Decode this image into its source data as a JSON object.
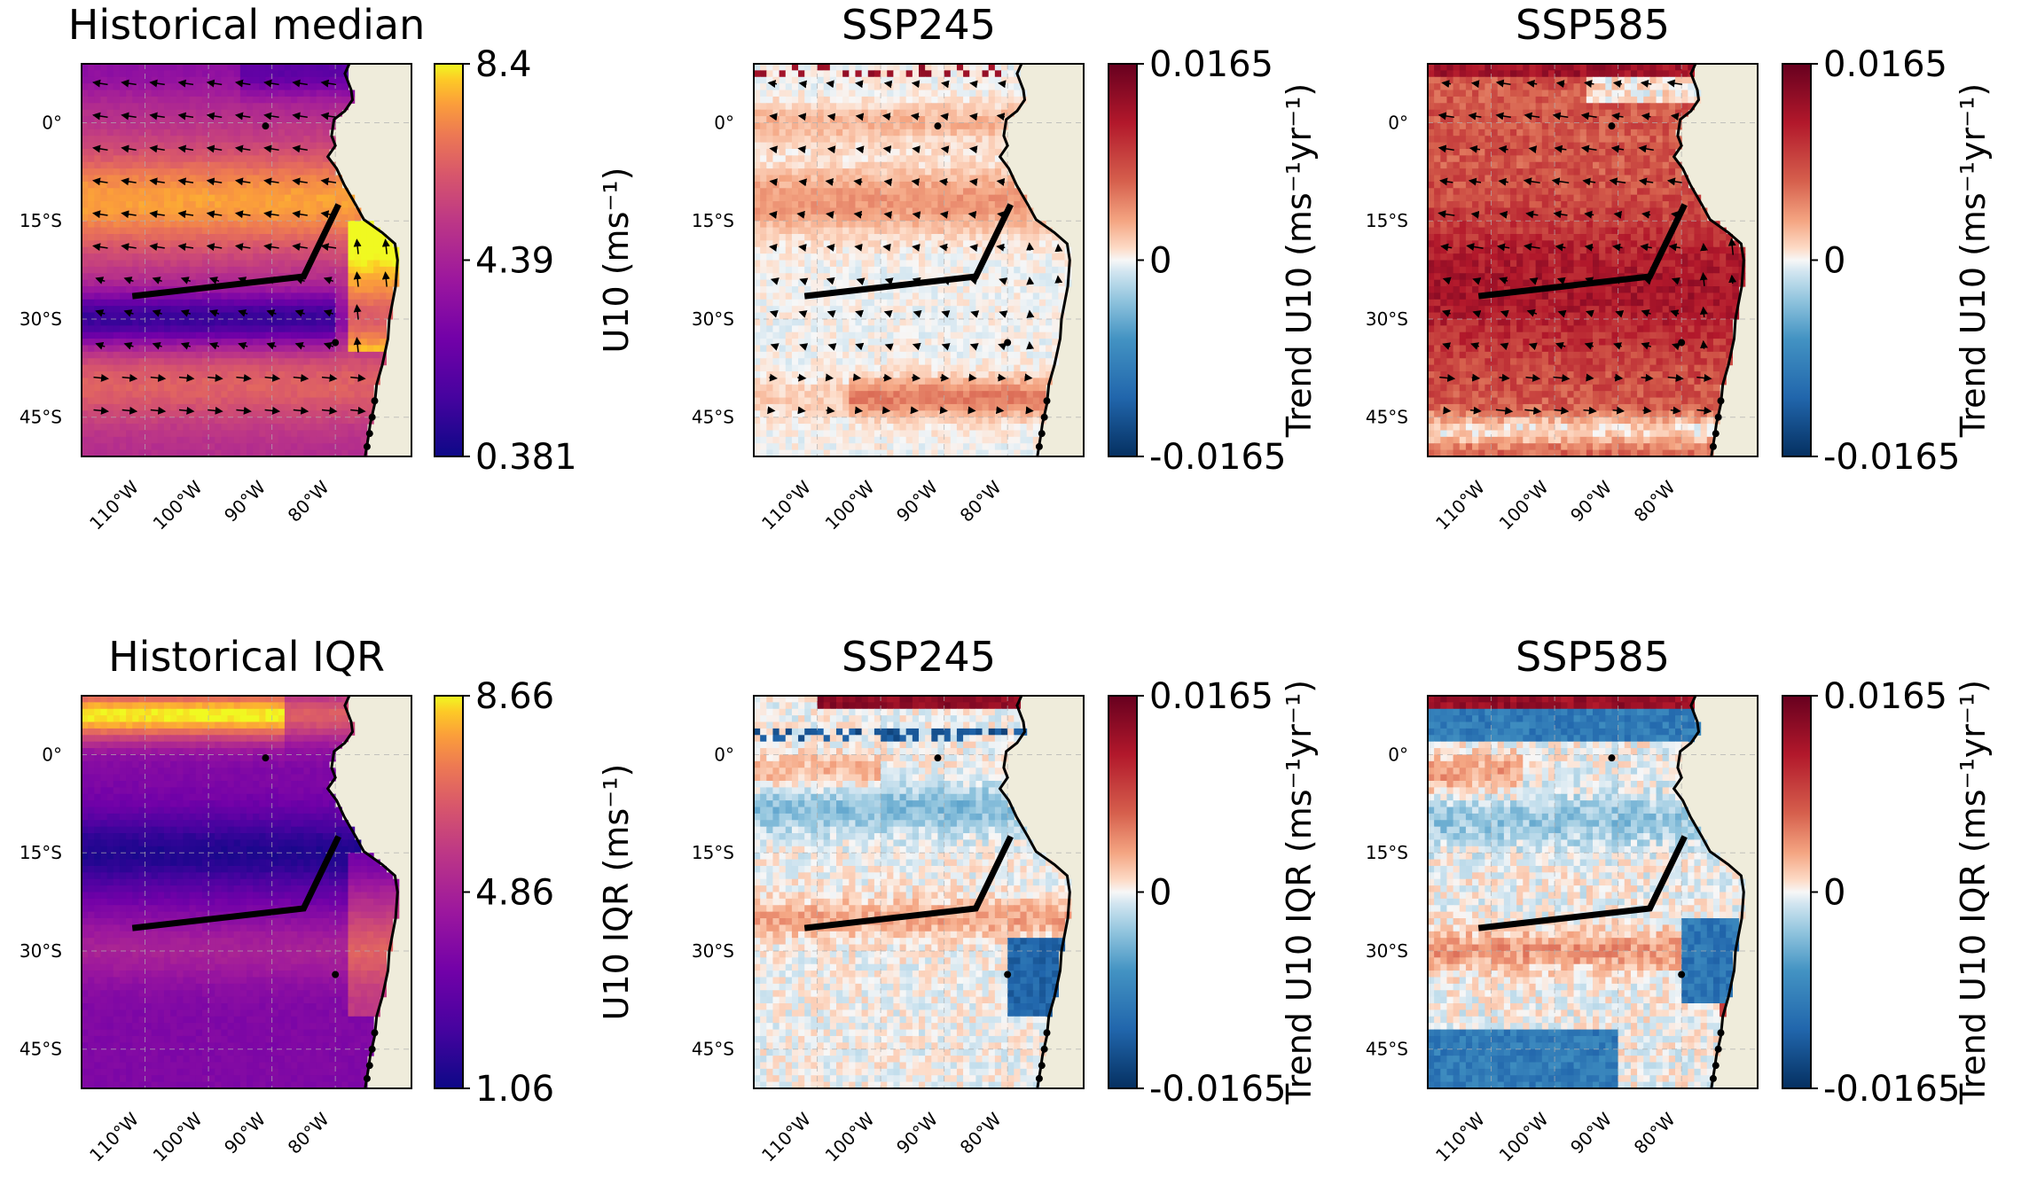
{
  "figure": {
    "description_free": true,
    "lat_ticks": [
      "0°",
      "15°S",
      "30°S",
      "45°S"
    ],
    "lon_ticks": [
      "110°W",
      "100°W",
      "90°W",
      "80°W"
    ],
    "lat_values": [
      0,
      -15,
      -30,
      -45
    ],
    "lon_values": [
      -110,
      -100,
      -90,
      -80
    ]
  },
  "chart_data": [
    {
      "type": "heatmap",
      "title": "Historical median",
      "variable": "U10 wind speed",
      "colormap": "plasma",
      "colorbar_label": "U10 (ms⁻¹)",
      "colorbar_ticks": [
        "8.4",
        "4.39",
        "0.381"
      ],
      "vmin": 0.381,
      "vmax": 8.4,
      "quiver": true,
      "xlim": [
        -120,
        -70
      ],
      "ylim": [
        -50,
        10
      ]
    },
    {
      "type": "heatmap",
      "title": "SSP245",
      "variable": "Trend U10",
      "colormap": "RdBu_r",
      "colorbar_label": "Trend U10 (ms⁻¹yr⁻¹)",
      "colorbar_ticks": [
        "0.0165",
        "0",
        "-0.0165"
      ],
      "vmin": -0.0165,
      "vmax": 0.0165,
      "quiver": true,
      "xlim": [
        -120,
        -70
      ],
      "ylim": [
        -50,
        10
      ]
    },
    {
      "type": "heatmap",
      "title": "SSP585",
      "variable": "Trend U10",
      "colormap": "RdBu_r",
      "colorbar_label": "Trend U10 (ms⁻¹yr⁻¹)",
      "colorbar_ticks": [
        "0.0165",
        "0",
        "-0.0165"
      ],
      "vmin": -0.0165,
      "vmax": 0.0165,
      "quiver": true,
      "xlim": [
        -120,
        -70
      ],
      "ylim": [
        -50,
        10
      ]
    },
    {
      "type": "heatmap",
      "title": "Historical IQR",
      "variable": "U10 IQR",
      "colormap": "plasma",
      "colorbar_label": "U10 IQR (ms⁻¹)",
      "colorbar_ticks": [
        "8.66",
        "4.86",
        "1.06"
      ],
      "vmin": 1.06,
      "vmax": 8.66,
      "quiver": false,
      "xlim": [
        -120,
        -70
      ],
      "ylim": [
        -50,
        10
      ]
    },
    {
      "type": "heatmap",
      "title": "SSP245",
      "variable": "Trend U10 IQR",
      "colormap": "RdBu_r",
      "colorbar_label": "Trend U10 IQR (ms⁻¹yr⁻¹)",
      "colorbar_ticks": [
        "0.0165",
        "0",
        "-0.0165"
      ],
      "vmin": -0.0165,
      "vmax": 0.0165,
      "quiver": false,
      "xlim": [
        -120,
        -70
      ],
      "ylim": [
        -50,
        10
      ]
    },
    {
      "type": "heatmap",
      "title": "SSP585",
      "variable": "Trend U10 IQR",
      "colormap": "RdBu_r",
      "colorbar_label": "Trend U10 IQR (ms⁻¹yr⁻¹)",
      "colorbar_ticks": [
        "0.0165",
        "0",
        "-0.0165"
      ],
      "vmin": -0.0165,
      "vmax": 0.0165,
      "quiver": false,
      "xlim": [
        -120,
        -70
      ],
      "ylim": [
        -50,
        10
      ]
    }
  ],
  "colors": {
    "land": "#efecdb",
    "coast": "#000000",
    "section_line": "#000000",
    "grid": "#b0b0b0"
  }
}
